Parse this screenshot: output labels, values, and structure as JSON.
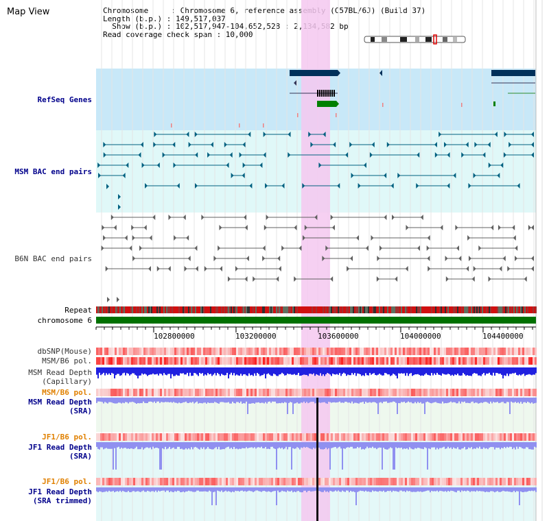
{
  "title": "Map View",
  "info": {
    "line1": "Chromosome     : Chromosome 6, reference assembly (C57BL/6J) (Build 37)",
    "line2": "Length (b.p.) : 149,517,037",
    "line3": "  Show (b.p.) : 102,517,947-104,652,528 : 2,134,582 bp",
    "line4": "Read coverage check span : 10,000"
  },
  "tracks": {
    "refseq": "RefSeq Genes",
    "msm_bac": "MSM BAC end pairs",
    "b6n_bac": "B6N BAC end pairs",
    "repeat": "Repeat",
    "chromosome": "chromosome 6",
    "dbsnp": "dbSNP(Mouse)",
    "msm_b6_pol": "MSM/B6 pol.",
    "msm_depth_cap_1": "MSM Read Depth",
    "msm_depth_cap_2": "(Capillary)",
    "msm_b6_pol_2": "MSM/B6 pol.",
    "msm_depth_sra_1": "MSM Read Depth",
    "msm_depth_sra_2": "(SRA)",
    "jf1_b6_pol": "JF1/B6 pol.",
    "jf1_depth_sra_1": "JF1 Read Depth",
    "jf1_depth_sra_2": "(SRA)",
    "jf1_b6_pol_2": "JF1/B6 pol.",
    "jf1_depth_trim_1": "JF1 Read Depth",
    "jf1_depth_trim_2": "(SRA trimmed)"
  },
  "axis_ticks": [
    "102800000",
    "103200000",
    "103600000",
    "104000000",
    "104400000"
  ],
  "colors": {
    "refseq_bg": "#c8e8f8",
    "bac_bg": "#e0f8f8",
    "highlight": "#f4c8f0",
    "gene_dark": "#00305a",
    "gene_green": "#008000",
    "msm_line": "#006080",
    "b6n_line": "#606060",
    "chrom_green": "#007000",
    "depth_blue": "#2020e0",
    "sra_blue": "#9090f0"
  }
}
